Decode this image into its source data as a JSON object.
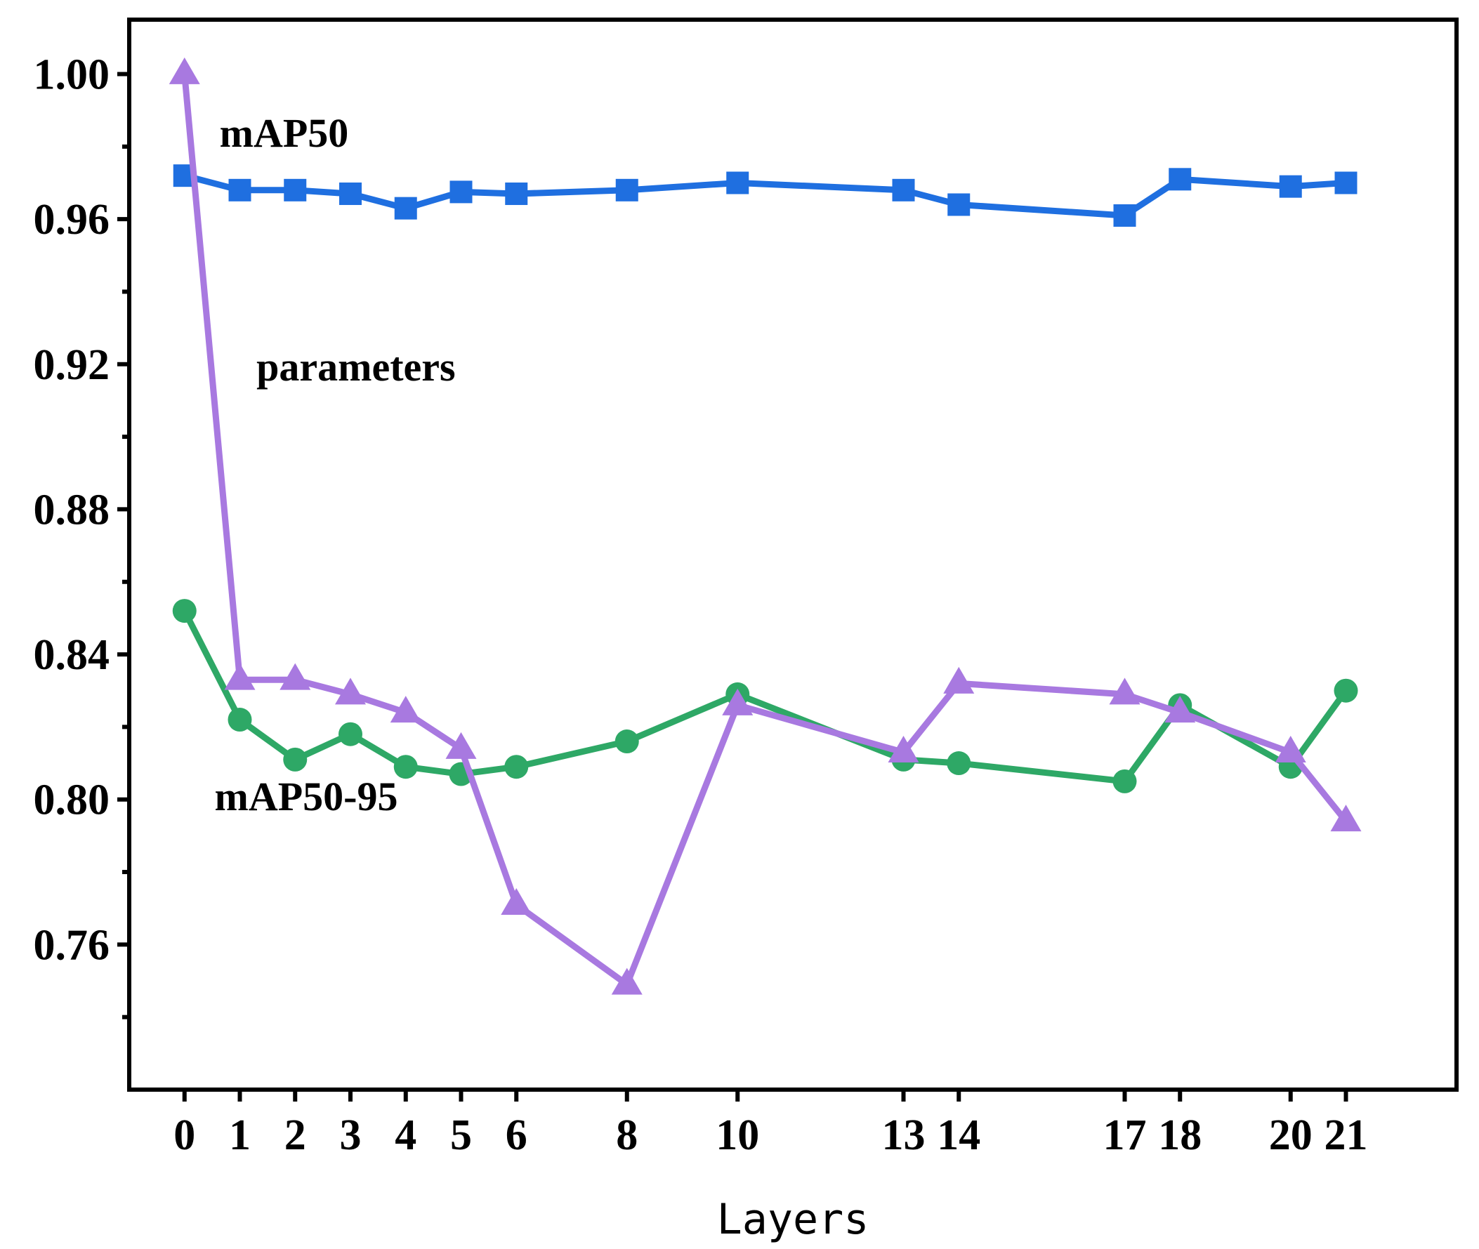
{
  "chart_data": {
    "type": "line",
    "title": "",
    "xlabel": "Layers",
    "ylabel": "",
    "x": [
      0,
      1,
      2,
      3,
      4,
      5,
      6,
      8,
      10,
      13,
      14,
      17,
      18,
      20,
      21
    ],
    "xticks": [
      0,
      1,
      2,
      3,
      4,
      5,
      6,
      8,
      10,
      13,
      14,
      17,
      18,
      20,
      21
    ],
    "xlim": [
      -1,
      23
    ],
    "ylim": [
      0.72,
      1.015
    ],
    "yticks": [
      {
        "value": 1.0,
        "label": "1.00"
      },
      {
        "value": 0.96,
        "label": "0.96"
      },
      {
        "value": 0.92,
        "label": "0.92"
      },
      {
        "value": 0.88,
        "label": "0.88"
      },
      {
        "value": 0.84,
        "label": "0.84"
      },
      {
        "value": 0.8,
        "label": "0.80"
      },
      {
        "value": 0.76,
        "label": "0.76"
      }
    ],
    "yminor": [
      0.98,
      0.94,
      0.9,
      0.86,
      0.82,
      0.78,
      0.74
    ],
    "series": [
      {
        "name": "mAP50",
        "color": "#1f6fe0",
        "marker": "square",
        "label_at": [
          1.8,
          0.98
        ],
        "values": [
          0.972,
          0.968,
          0.968,
          0.967,
          0.963,
          0.9675,
          0.967,
          0.968,
          0.97,
          0.968,
          0.964,
          0.961,
          0.971,
          0.969,
          0.97
        ]
      },
      {
        "name": "mAP50-95",
        "color": "#2ea866",
        "marker": "circle",
        "label_at": [
          2.2,
          0.797
        ],
        "values": [
          0.852,
          0.822,
          0.811,
          0.818,
          0.809,
          0.807,
          0.809,
          0.816,
          0.829,
          0.811,
          0.81,
          0.805,
          0.826,
          0.809,
          0.83
        ]
      },
      {
        "name": "parameters",
        "color": "#a879e0",
        "marker": "triangle",
        "label_at": [
          3.1,
          0.9155
        ],
        "values": [
          1.0,
          0.833,
          0.833,
          0.829,
          0.824,
          0.814,
          0.771,
          0.749,
          0.826,
          0.813,
          0.832,
          0.829,
          0.824,
          0.813,
          0.794
        ]
      }
    ]
  }
}
